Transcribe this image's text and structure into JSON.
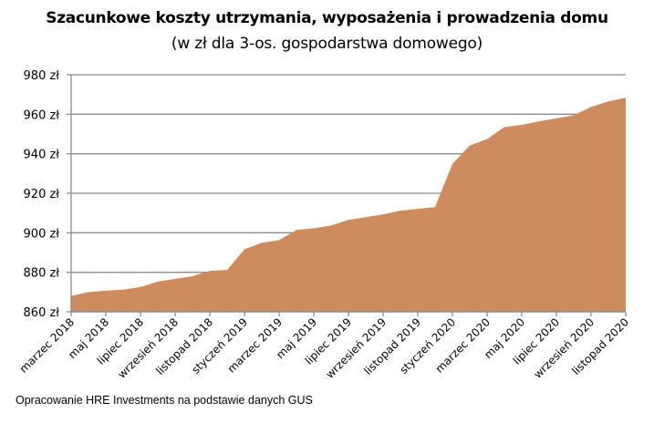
{
  "header": {
    "title": "Szacunkowe koszty utrzymania, wyposażenia i prowadzenia domu",
    "subtitle": "(w zł dla 3-os. gospodarstwa domowego)"
  },
  "footer": {
    "source": "Opracowanie HRE Investments na podstawie danych GUS"
  },
  "colors": {
    "area_fill": "#CE8B5E",
    "gridline": "#8C8C8C",
    "axis": "#8C8C8C"
  },
  "chart_data": {
    "type": "area",
    "title": "Szacunkowe koszty utrzymania, wyposażenia i prowadzenia domu",
    "subtitle": "(w zł dla 3-os. gospodarstwa domowego)",
    "xlabel": "",
    "ylabel": "",
    "ylim": [
      860,
      980
    ],
    "y_ticks": [
      860,
      880,
      900,
      920,
      940,
      960,
      980
    ],
    "y_tick_labels": [
      "860 zł",
      "880 zł",
      "900 zł",
      "920 zł",
      "940 zł",
      "960 zł",
      "980 zł"
    ],
    "grid": true,
    "legend": "none",
    "x": [
      "marzec 2018",
      "kwiecień 2018",
      "maj 2018",
      "czerwiec 2018",
      "lipiec 2018",
      "sierpień 2018",
      "wrzesień 2018",
      "październik 2018",
      "listopad 2018",
      "grudzień 2018",
      "styczeń 2019",
      "luty 2019",
      "marzec 2019",
      "kwiecień 2019",
      "maj 2019",
      "czerwiec 2019",
      "lipiec 2019",
      "sierpień 2019",
      "wrzesień 2019",
      "październik 2019",
      "listopad 2019",
      "grudzień 2019",
      "styczeń 2020",
      "luty 2020",
      "marzec 2020",
      "kwiecień 2020",
      "maj 2020",
      "czerwiec 2020",
      "lipiec 2020",
      "sierpień 2020",
      "wrzesień 2020",
      "październik 2020",
      "listopad 2020"
    ],
    "x_tick_labels": [
      "marzec 2018",
      "maj 2018",
      "lipiec 2018",
      "wrzesień 2018",
      "listopad 2018",
      "styczeń 2019",
      "marzec 2019",
      "maj 2019",
      "lipiec 2019",
      "wrzesień 2019",
      "listopad 2019",
      "styczeń 2020",
      "marzec 2020",
      "maj 2020",
      "lipiec 2020",
      "wrzesień 2020",
      "listopad 2020"
    ],
    "series": [
      {
        "name": "Koszty utrzymania, wyposażenia i prowadzenia domu",
        "values": [
          868,
          870,
          870.7,
          871.2,
          872.5,
          875.3,
          876.7,
          878,
          880.7,
          881.2,
          891.6,
          894.9,
          896.3,
          901.4,
          902.3,
          903.7,
          906.5,
          907.9,
          909.3,
          911.2,
          912.1,
          913,
          934.9,
          944.2,
          947.4,
          953.5,
          954.6,
          956.4,
          957.9,
          959.5,
          963.7,
          966.5,
          968.4
        ]
      }
    ]
  }
}
